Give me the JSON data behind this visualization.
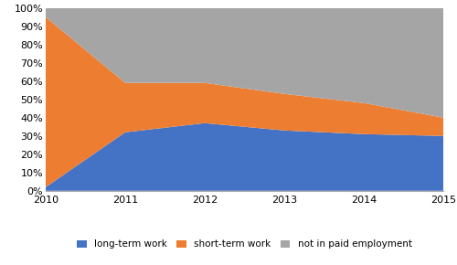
{
  "years": [
    2010,
    2011,
    2012,
    2013,
    2014,
    2015
  ],
  "long_term": [
    2,
    32,
    37,
    33,
    31,
    30
  ],
  "short_term": [
    93,
    27,
    22,
    20,
    17,
    10
  ],
  "not_paid": [
    5,
    41,
    41,
    47,
    52,
    60
  ],
  "colors": {
    "long_term": "#4472C4",
    "short_term": "#ED7D31",
    "not_paid": "#A5A5A5"
  },
  "legend_labels": [
    "long-term work",
    "short-term work",
    "not in paid employment"
  ],
  "yticks": [
    0,
    10,
    20,
    30,
    40,
    50,
    60,
    70,
    80,
    90,
    100
  ],
  "ytick_labels": [
    "0%",
    "10%",
    "20%",
    "30%",
    "40%",
    "50%",
    "60%",
    "70%",
    "80%",
    "90%",
    "100%"
  ],
  "figsize": [
    5.0,
    2.9
  ],
  "dpi": 100
}
